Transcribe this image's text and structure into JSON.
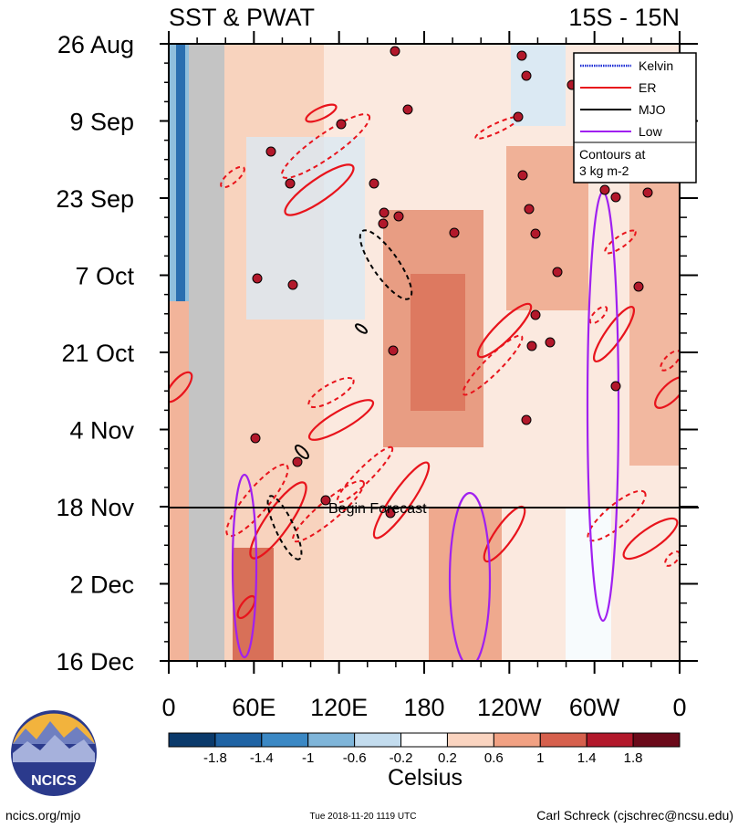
{
  "chart_data": {
    "type": "heatmap",
    "title_left": "SST & PWAT",
    "title_right": "15S - 15N",
    "y_ticks": [
      "26 Aug",
      "9 Sep",
      "23 Sep",
      "7 Oct",
      "21 Oct",
      "4 Nov",
      "18 Nov",
      "2 Dec",
      "16 Dec"
    ],
    "x_ticks": [
      "0",
      "60E",
      "120E",
      "180",
      "120W",
      "60W",
      "0"
    ],
    "x_range_deg_east": [
      0,
      360
    ],
    "forecast_label": "Begin Forecast",
    "forecast_date": "18 Nov",
    "colorbar": {
      "label": "Celsius",
      "ticks": [
        "-1.8",
        "-1.4",
        "-1",
        "-0.6",
        "-0.2",
        "0.2",
        "0.6",
        "1",
        "1.4",
        "1.8"
      ],
      "colors": [
        "#0b3a6b",
        "#1f63a4",
        "#3b88c4",
        "#7fb5d9",
        "#c3dcee",
        "#ffffff",
        "#fad4c0",
        "#f1a183",
        "#d6604d",
        "#b2182b",
        "#6b0a1a"
      ]
    },
    "legend": {
      "entries": [
        {
          "name": "Kelvin",
          "color": "#1c2cd4"
        },
        {
          "name": "ER",
          "color": "#e8141c"
        },
        {
          "name": "MJO",
          "color": "#000000"
        },
        {
          "name": "Low",
          "color": "#a020f0"
        }
      ],
      "note_line1": "Contours at",
      "note_line2": "3 kg m-2"
    },
    "grid": false,
    "legend_position": "top-right"
  },
  "branding": {
    "logo_text": "NCICS",
    "website": "ncics.org/mjo",
    "timestamp": "Tue 2018-11-20 1119 UTC",
    "author": "Carl Schreck (cjschrec@ncsu.edu)"
  }
}
